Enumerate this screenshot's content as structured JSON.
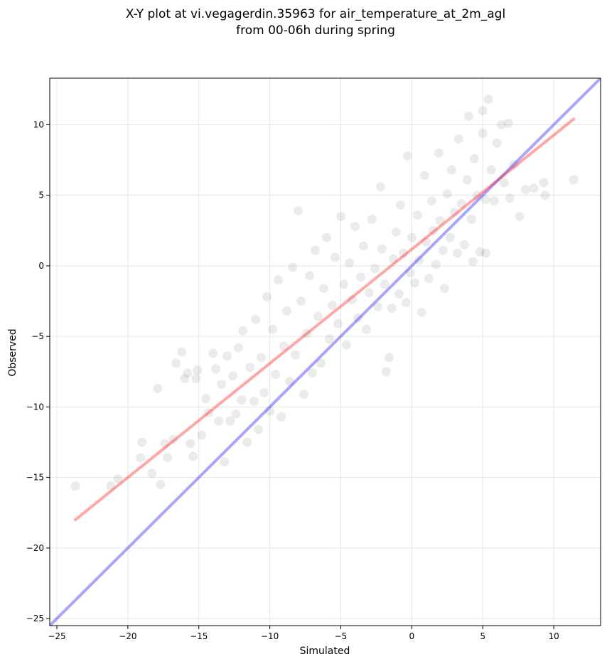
{
  "chart_data": {
    "type": "scatter",
    "title_line1": "X-Y plot at vi.vegagerdin.35963 for air_temperature_at_2m_agl",
    "title_line2": "from 00-06h during spring",
    "xlabel": "Simulated",
    "ylabel": "Observed",
    "xlim": [
      -25.5,
      13.3
    ],
    "ylim": [
      -25.5,
      13.3
    ],
    "xticks": [
      -25,
      -20,
      -15,
      -10,
      -5,
      0,
      5,
      10
    ],
    "yticks": [
      -25,
      -20,
      -15,
      -10,
      -5,
      0,
      5,
      10
    ],
    "xtick_labels": [
      "−25",
      "−20",
      "−15",
      "−10",
      "−5",
      "0",
      "5",
      "10"
    ],
    "ytick_labels": [
      "−25",
      "−20",
      "−15",
      "−10",
      "−5",
      "0",
      "5",
      "10"
    ],
    "grid": true,
    "point_color": "#000000",
    "point_alpha": 0.08,
    "lines": [
      {
        "role": "one-to-one",
        "color": "#0000ff",
        "x": [
          -25.5,
          13.3
        ],
        "y": [
          -25.5,
          13.3
        ]
      },
      {
        "role": "regression",
        "color": "#ff0000",
        "x": [
          -23.7,
          11.4
        ],
        "y": [
          -18.0,
          10.4
        ]
      }
    ],
    "points": [
      [
        -23.7,
        -15.6
      ],
      [
        -21.2,
        -15.6
      ],
      [
        -20.7,
        -15.1
      ],
      [
        -19.1,
        -13.6
      ],
      [
        -19.0,
        -12.5
      ],
      [
        -18.3,
        -14.7
      ],
      [
        -17.9,
        -8.7
      ],
      [
        -17.7,
        -15.5
      ],
      [
        -17.4,
        -12.6
      ],
      [
        -17.2,
        -13.6
      ],
      [
        -16.8,
        -12.3
      ],
      [
        -16.6,
        -6.9
      ],
      [
        -16.2,
        -6.1
      ],
      [
        -16.0,
        -8.0
      ],
      [
        -15.8,
        -7.6
      ],
      [
        -15.6,
        -12.6
      ],
      [
        -15.4,
        -13.5
      ],
      [
        -15.2,
        -8.0
      ],
      [
        -15.1,
        -7.4
      ],
      [
        -14.8,
        -12.0
      ],
      [
        -14.5,
        -9.4
      ],
      [
        -14.3,
        -10.4
      ],
      [
        -14.0,
        -6.2
      ],
      [
        -13.8,
        -7.3
      ],
      [
        -13.6,
        -11.0
      ],
      [
        -13.4,
        -8.4
      ],
      [
        -13.2,
        -13.9
      ],
      [
        -13.0,
        -6.4
      ],
      [
        -12.8,
        -11.0
      ],
      [
        -12.6,
        -7.8
      ],
      [
        -12.4,
        -10.5
      ],
      [
        -12.2,
        -5.8
      ],
      [
        -12.0,
        -9.5
      ],
      [
        -11.9,
        -4.6
      ],
      [
        -11.6,
        -12.5
      ],
      [
        -11.4,
        -7.2
      ],
      [
        -11.1,
        -9.6
      ],
      [
        -11.0,
        -3.8
      ],
      [
        -10.8,
        -11.6
      ],
      [
        -10.6,
        -6.5
      ],
      [
        -10.4,
        -9.0
      ],
      [
        -10.2,
        -2.2
      ],
      [
        -10.0,
        -10.3
      ],
      [
        -9.8,
        -4.5
      ],
      [
        -9.6,
        -7.7
      ],
      [
        -9.4,
        -1.0
      ],
      [
        -9.2,
        -10.7
      ],
      [
        -9.0,
        -5.7
      ],
      [
        -8.8,
        -3.2
      ],
      [
        -8.6,
        -8.2
      ],
      [
        -8.4,
        -0.1
      ],
      [
        -8.2,
        -6.3
      ],
      [
        -8.0,
        3.9
      ],
      [
        -7.8,
        -2.5
      ],
      [
        -7.6,
        -9.1
      ],
      [
        -7.4,
        -4.8
      ],
      [
        -7.2,
        -0.7
      ],
      [
        -7.0,
        -7.6
      ],
      [
        -6.8,
        1.1
      ],
      [
        -6.6,
        -3.6
      ],
      [
        -6.4,
        -6.9
      ],
      [
        -6.2,
        -1.6
      ],
      [
        -6.0,
        2.0
      ],
      [
        -5.8,
        -5.2
      ],
      [
        -5.6,
        -2.8
      ],
      [
        -5.4,
        0.6
      ],
      [
        -5.2,
        -4.1
      ],
      [
        -5.0,
        3.5
      ],
      [
        -4.8,
        -1.3
      ],
      [
        -4.6,
        -5.6
      ],
      [
        -4.4,
        0.2
      ],
      [
        -4.2,
        -2.4
      ],
      [
        -4.0,
        2.8
      ],
      [
        -3.8,
        -3.7
      ],
      [
        -3.6,
        -0.8
      ],
      [
        -3.4,
        1.4
      ],
      [
        -3.2,
        -4.5
      ],
      [
        -3.0,
        -1.9
      ],
      [
        -2.8,
        3.3
      ],
      [
        -2.6,
        -0.2
      ],
      [
        -2.4,
        -2.9
      ],
      [
        -2.2,
        5.6
      ],
      [
        -2.1,
        1.2
      ],
      [
        -1.9,
        -1.3
      ],
      [
        -1.8,
        -7.5
      ],
      [
        -1.6,
        -6.5
      ],
      [
        -1.4,
        -3.0
      ],
      [
        -1.3,
        0.5
      ],
      [
        -1.1,
        2.4
      ],
      [
        -0.9,
        -2.0
      ],
      [
        -0.8,
        4.3
      ],
      [
        -0.6,
        0.9
      ],
      [
        -0.4,
        -2.6
      ],
      [
        -0.3,
        7.8
      ],
      [
        -0.1,
        -0.5
      ],
      [
        0.0,
        2.0
      ],
      [
        0.2,
        -1.2
      ],
      [
        0.4,
        3.6
      ],
      [
        0.5,
        0.4
      ],
      [
        0.7,
        -3.3
      ],
      [
        0.9,
        6.4
      ],
      [
        1.0,
        1.7
      ],
      [
        1.2,
        -0.9
      ],
      [
        1.4,
        4.6
      ],
      [
        1.5,
        2.5
      ],
      [
        1.7,
        0.1
      ],
      [
        1.9,
        8.0
      ],
      [
        2.0,
        3.2
      ],
      [
        2.2,
        1.1
      ],
      [
        2.3,
        -1.6
      ],
      [
        2.5,
        5.1
      ],
      [
        2.7,
        2.0
      ],
      [
        2.8,
        6.8
      ],
      [
        3.0,
        3.8
      ],
      [
        3.2,
        0.9
      ],
      [
        3.3,
        9.0
      ],
      [
        3.5,
        4.4
      ],
      [
        3.7,
        1.5
      ],
      [
        3.9,
        6.1
      ],
      [
        4.0,
        10.6
      ],
      [
        4.2,
        3.3
      ],
      [
        4.4,
        7.6
      ],
      [
        4.6,
        5.0
      ],
      [
        4.8,
        1.0
      ],
      [
        5.0,
        9.4
      ],
      [
        5.2,
        4.7
      ],
      [
        5.4,
        11.8
      ],
      [
        5.6,
        6.8
      ],
      [
        5.8,
        4.6
      ],
      [
        6.0,
        8.7
      ],
      [
        6.3,
        10.0
      ],
      [
        6.5,
        5.9
      ],
      [
        6.9,
        4.8
      ],
      [
        7.2,
        7.2
      ],
      [
        7.6,
        3.5
      ],
      [
        8.0,
        5.4
      ],
      [
        8.6,
        5.5
      ],
      [
        9.3,
        5.9
      ],
      [
        9.4,
        5.0
      ],
      [
        11.4,
        6.1
      ],
      [
        6.8,
        10.1
      ],
      [
        5.0,
        11.0
      ],
      [
        4.3,
        0.3
      ],
      [
        5.2,
        0.9
      ]
    ]
  }
}
